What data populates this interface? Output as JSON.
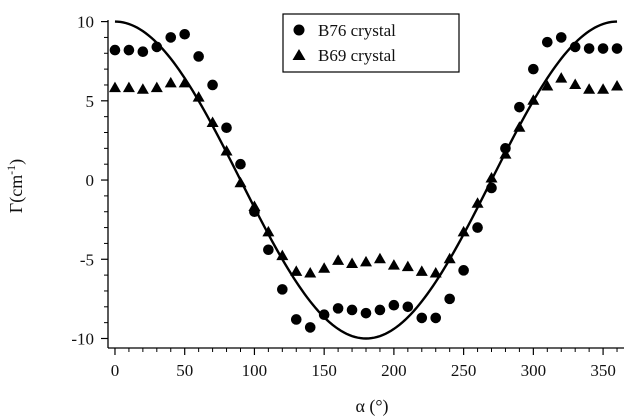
{
  "chart_data": {
    "type": "scatter",
    "xlabel": "α (°)",
    "ylabel_main": "Γ(cm",
    "ylabel_sup": "-1",
    "ylabel_close": ")",
    "xlim": [
      -5,
      365
    ],
    "ylim": [
      -10.6,
      10.1
    ],
    "xticks": [
      0,
      50,
      100,
      150,
      200,
      250,
      300,
      350
    ],
    "yticks": [
      10,
      5,
      0,
      -5,
      -10
    ],
    "legend_position": "top-center",
    "series": [
      {
        "name": "B76 crystal",
        "marker": "circle",
        "x": [
          0,
          10,
          20,
          30,
          40,
          50,
          60,
          70,
          80,
          90,
          100,
          110,
          120,
          130,
          140,
          150,
          160,
          170,
          180,
          190,
          200,
          210,
          220,
          230,
          240,
          250,
          260,
          270,
          280,
          290,
          300,
          310,
          320,
          330,
          340,
          350,
          360
        ],
        "y": [
          8.2,
          8.2,
          8.1,
          8.4,
          9.0,
          9.2,
          7.8,
          6.0,
          3.3,
          1.0,
          -2.0,
          -4.4,
          -6.9,
          -8.8,
          -9.3,
          -8.5,
          -8.1,
          -8.2,
          -8.4,
          -8.2,
          -7.9,
          -8.0,
          -8.7,
          -8.7,
          -7.5,
          -5.7,
          -3.0,
          -0.5,
          2.0,
          4.6,
          7.0,
          8.7,
          9.0,
          8.4,
          8.3,
          8.3,
          8.3
        ]
      },
      {
        "name": "B69 crystal",
        "marker": "triangle",
        "x": [
          0,
          10,
          20,
          30,
          40,
          50,
          60,
          70,
          80,
          90,
          100,
          110,
          120,
          130,
          140,
          150,
          160,
          170,
          180,
          190,
          200,
          210,
          220,
          230,
          240,
          250,
          260,
          270,
          280,
          290,
          300,
          310,
          320,
          330,
          340,
          350,
          360
        ],
        "y": [
          5.8,
          5.8,
          5.7,
          5.8,
          6.1,
          6.1,
          5.2,
          3.6,
          1.8,
          -0.2,
          -1.7,
          -3.3,
          -4.8,
          -5.8,
          -5.9,
          -5.6,
          -5.1,
          -5.3,
          -5.2,
          -5.0,
          -5.4,
          -5.5,
          -5.8,
          -5.9,
          -5.0,
          -3.3,
          -1.5,
          0.1,
          1.6,
          3.3,
          5.0,
          5.9,
          6.4,
          6.0,
          5.7,
          5.7,
          5.9
        ]
      }
    ],
    "curve": {
      "type": "cosine",
      "amplitude": 10,
      "x_start": 0,
      "x_end": 360
    }
  }
}
